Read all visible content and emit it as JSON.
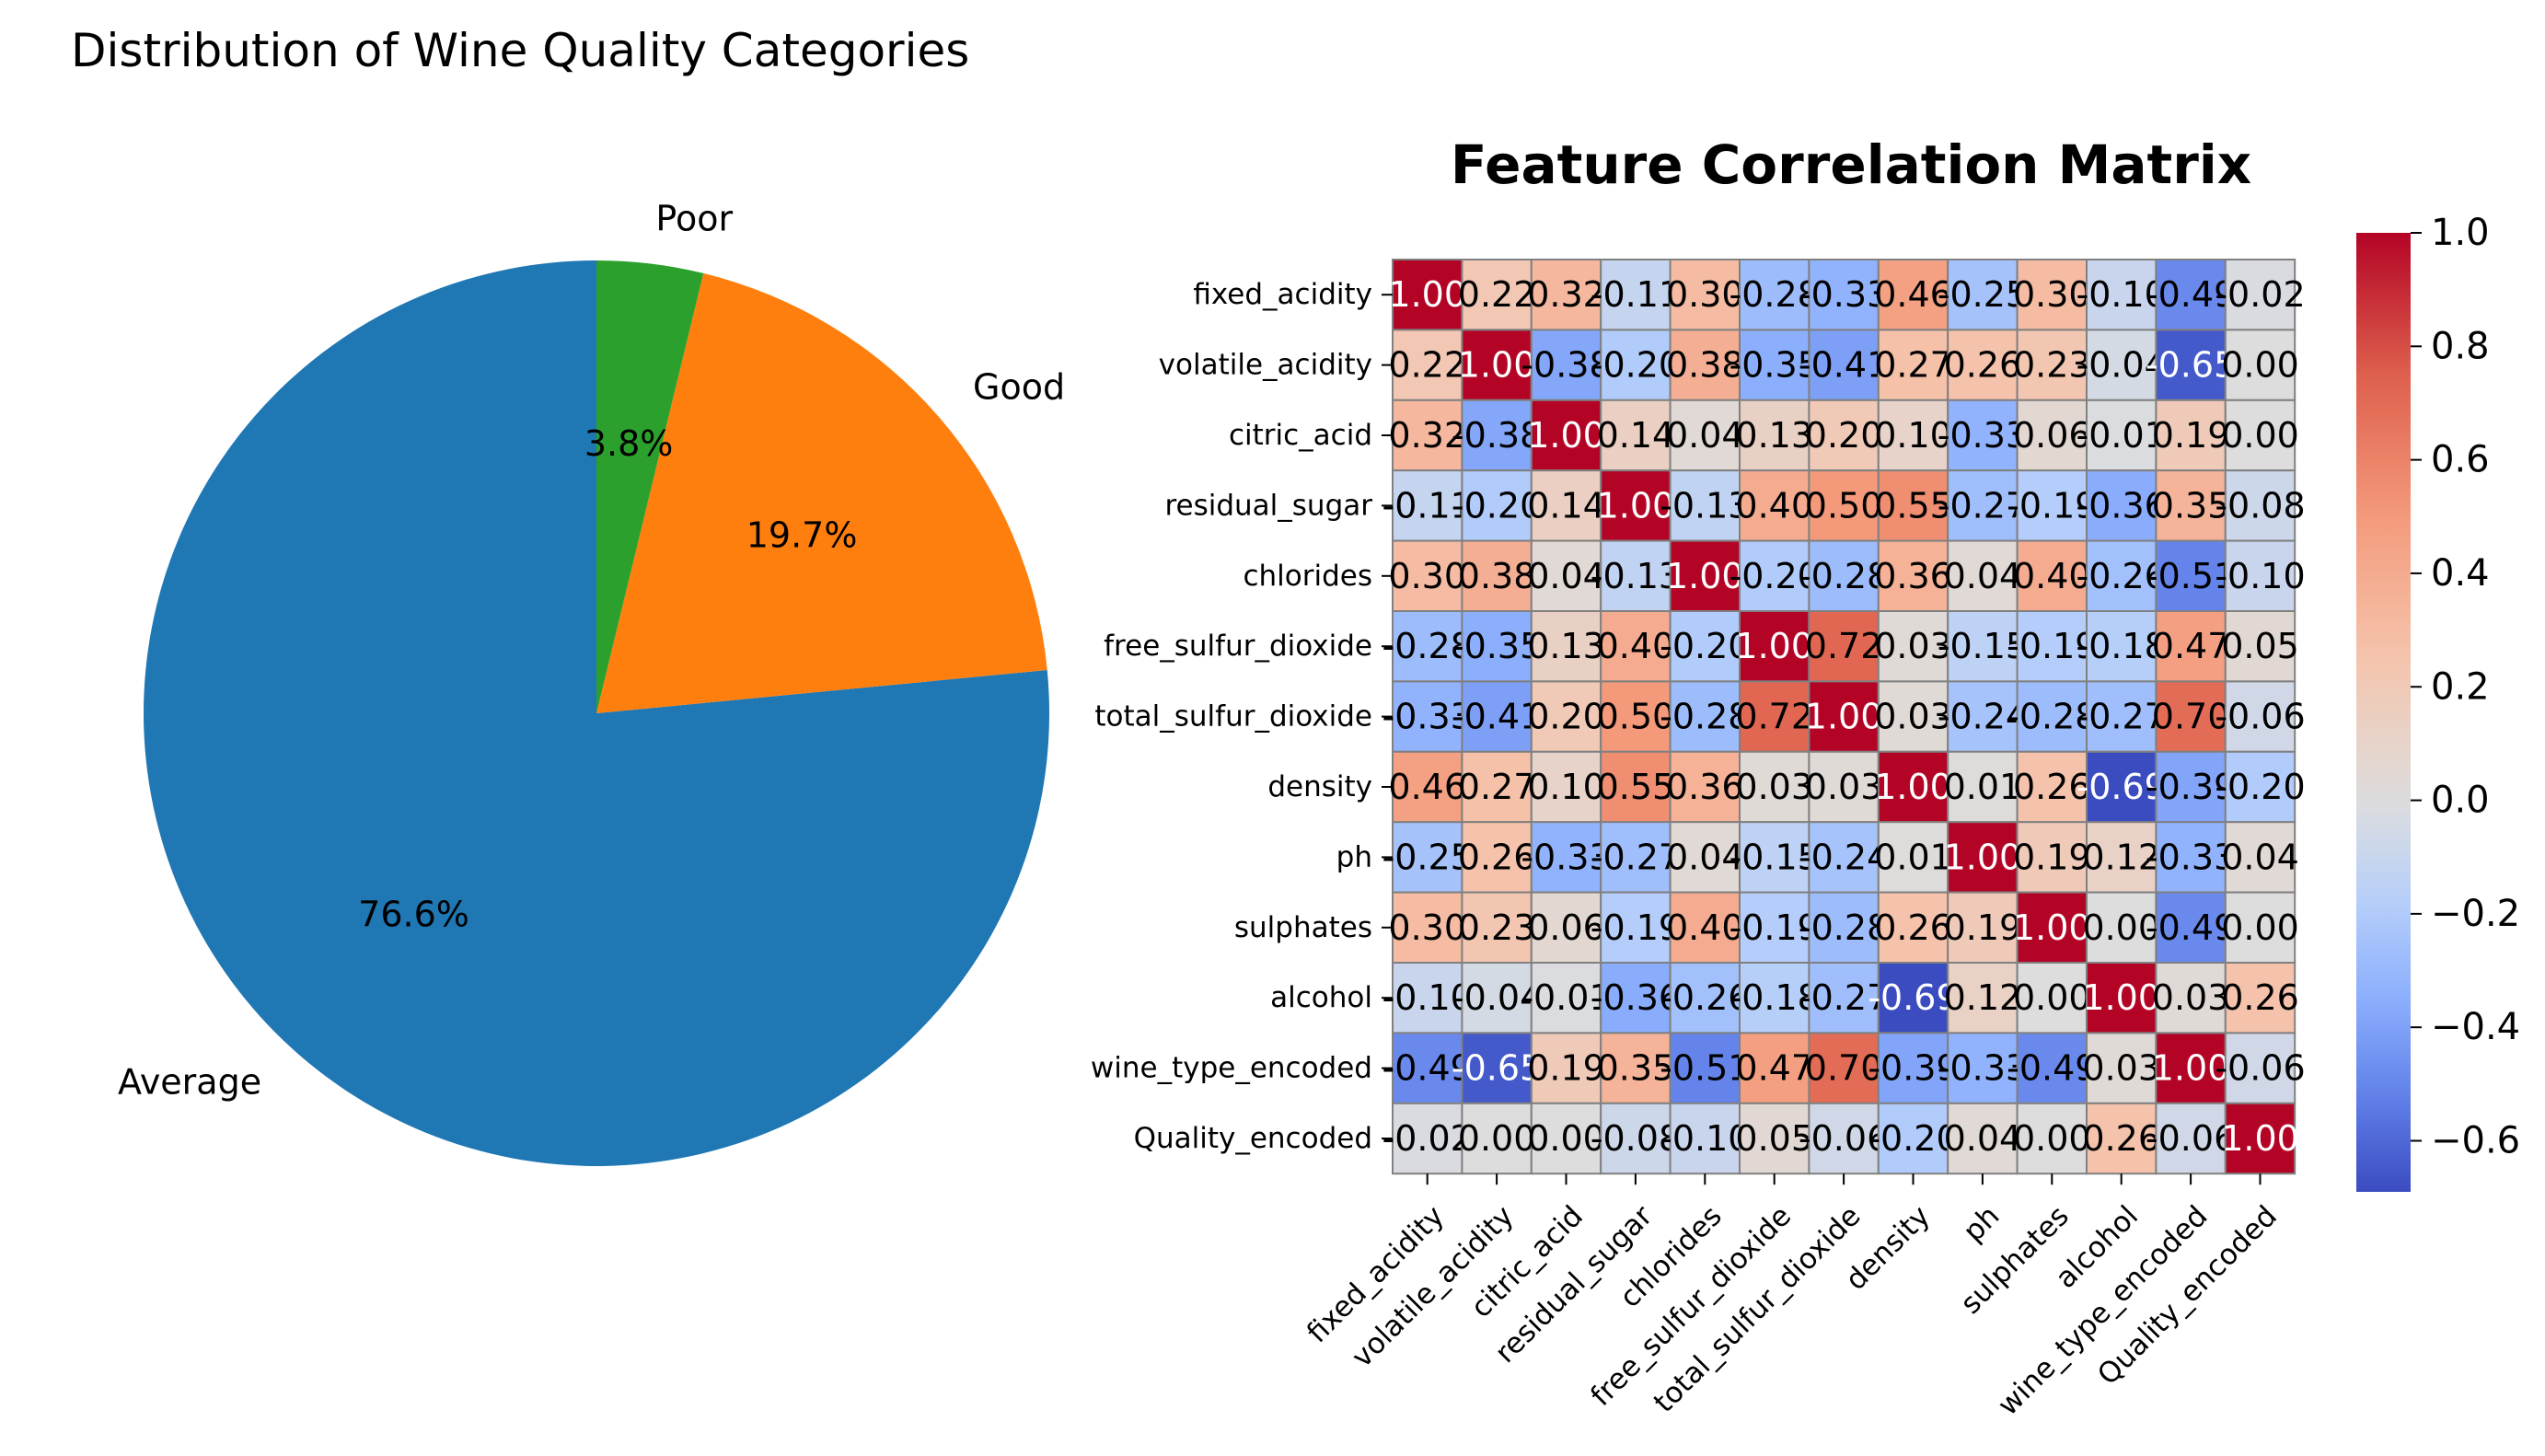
{
  "chart_data": [
    {
      "type": "pie",
      "title": "Distribution of Wine Quality Categories",
      "labels": [
        "Average",
        "Good",
        "Poor"
      ],
      "values": [
        76.6,
        19.7,
        3.8
      ],
      "percent_labels": [
        "76.6%",
        "19.7%",
        "3.8%"
      ],
      "colors": [
        "#1f77b4",
        "#ff7f0e",
        "#2ca02c"
      ],
      "start_angle_deg": 90,
      "direction": "counterclockwise",
      "label_order_in_data": "Average, Good, Poor (drawn clockwise from top: Poor, Good, Average)"
    },
    {
      "type": "heatmap",
      "title": "Feature Correlation Matrix",
      "colormap": "coolwarm",
      "vmin": -0.69,
      "vmax": 1.0,
      "colorbar_ticks": [
        1.0,
        0.8,
        0.6,
        0.4,
        0.2,
        0.0,
        -0.2,
        -0.4,
        -0.6
      ],
      "colorbar_tick_labels": [
        "1.0",
        "0.8",
        "0.6",
        "0.4",
        "0.2",
        "0.0",
        "−0.2",
        "−0.4",
        "−0.6"
      ],
      "features": [
        "fixed_acidity",
        "volatile_acidity",
        "citric_acid",
        "residual_sugar",
        "chlorides",
        "free_sulfur_dioxide",
        "total_sulfur_dioxide",
        "density",
        "ph",
        "sulphates",
        "alcohol",
        "wine_type_encoded",
        "Quality_encoded"
      ],
      "matrix": [
        [
          1.0,
          0.22,
          0.32,
          -0.11,
          0.3,
          -0.28,
          -0.33,
          0.46,
          -0.25,
          0.3,
          -0.1,
          -0.49,
          -0.02
        ],
        [
          0.22,
          1.0,
          -0.38,
          -0.2,
          0.38,
          -0.35,
          -0.41,
          0.27,
          0.26,
          0.23,
          -0.04,
          -0.65,
          0.0
        ],
        [
          0.32,
          -0.38,
          1.0,
          0.14,
          0.04,
          0.13,
          0.2,
          0.1,
          -0.33,
          0.06,
          -0.01,
          0.19,
          0.0
        ],
        [
          -0.11,
          -0.2,
          0.14,
          1.0,
          -0.13,
          0.4,
          0.5,
          0.55,
          -0.27,
          -0.19,
          -0.36,
          0.35,
          -0.08
        ],
        [
          0.3,
          0.38,
          0.04,
          -0.13,
          1.0,
          -0.2,
          -0.28,
          0.36,
          0.04,
          0.4,
          -0.26,
          -0.51,
          -0.1
        ],
        [
          -0.28,
          -0.35,
          0.13,
          0.4,
          -0.2,
          1.0,
          0.72,
          0.03,
          -0.15,
          -0.19,
          -0.18,
          0.47,
          0.05
        ],
        [
          -0.33,
          -0.41,
          0.2,
          0.5,
          -0.28,
          0.72,
          1.0,
          0.03,
          -0.24,
          -0.28,
          -0.27,
          0.7,
          -0.06
        ],
        [
          0.46,
          0.27,
          0.1,
          0.55,
          0.36,
          0.03,
          0.03,
          1.0,
          0.01,
          0.26,
          -0.69,
          -0.39,
          -0.2
        ],
        [
          -0.25,
          0.26,
          -0.33,
          -0.27,
          0.04,
          -0.15,
          -0.24,
          0.01,
          1.0,
          0.19,
          0.12,
          -0.33,
          0.04
        ],
        [
          0.3,
          0.23,
          0.06,
          -0.19,
          0.4,
          -0.19,
          -0.28,
          0.26,
          0.19,
          1.0,
          0.0,
          -0.49,
          0.0
        ],
        [
          -0.1,
          -0.04,
          -0.01,
          -0.36,
          -0.26,
          -0.18,
          -0.27,
          -0.69,
          0.12,
          0.0,
          1.0,
          0.03,
          0.26
        ],
        [
          -0.49,
          -0.65,
          0.19,
          0.35,
          -0.51,
          0.47,
          0.7,
          -0.39,
          -0.33,
          -0.49,
          0.03,
          1.0,
          -0.06
        ],
        [
          -0.02,
          0.0,
          0.0,
          -0.08,
          -0.1,
          0.05,
          -0.06,
          -0.2,
          0.04,
          0.0,
          0.26,
          -0.06,
          1.0
        ]
      ],
      "cell_border_color": "#808080",
      "annotation_format": "0.00"
    }
  ]
}
